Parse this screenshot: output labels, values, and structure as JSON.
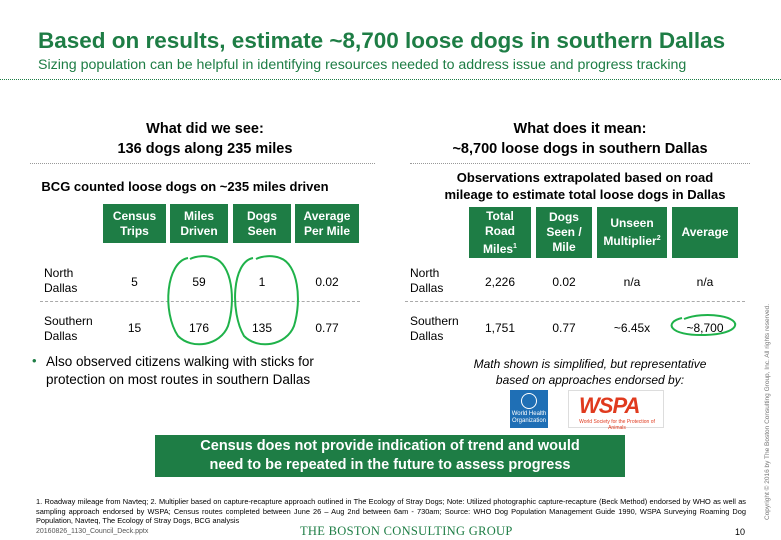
{
  "header": {
    "title": "Based on results, estimate ~8,700 loose dogs in southern Dallas",
    "subtitle": "Sizing population can be helpful in identifying resources needed to address issue and progress tracking"
  },
  "left": {
    "heading_line1": "What did we see:",
    "heading_line2": "136 dogs along 235 miles",
    "subheading": "BCG counted loose dogs on ~235 miles driven",
    "columns": [
      "Census\nTrips",
      "Miles\nDriven",
      "Dogs\nSeen",
      "Average\nPer Mile"
    ],
    "col_census": "Census Trips",
    "col_miles": "Miles Driven",
    "col_dogs": "Dogs Seen",
    "col_avg": "Average Per Mile",
    "rows": [
      {
        "label_line1": "North",
        "label_line2": "Dallas",
        "trips": "5",
        "miles": "59",
        "dogs": "1",
        "avg": "0.02"
      },
      {
        "label_line1": "Southern",
        "label_line2": "Dallas",
        "trips": "15",
        "miles": "176",
        "dogs": "135",
        "avg": "0.77"
      }
    ],
    "bullet_line1": "Also observed citizens walking with sticks for",
    "bullet_line2": "protection on most routes in southern Dallas"
  },
  "right": {
    "heading_line1": "What does it mean:",
    "heading_line2": "~8,700 loose dogs in southern Dallas",
    "subheading_line1": "Observations extrapolated based on road",
    "subheading_line2": "mileage to estimate total loose dogs in Dallas",
    "col_road_l1": "Total",
    "col_road_l2": "Road",
    "col_road_l3": "Miles",
    "col_road_sup": "1",
    "col_seen_l1": "Dogs",
    "col_seen_l2": "Seen /",
    "col_seen_l3": "Mile",
    "col_unseen_l1": "Unseen",
    "col_unseen_l2": "Multiplier",
    "col_unseen_sup": "2",
    "col_avg": "Average",
    "rows": [
      {
        "label_line1": "North",
        "label_line2": "Dallas",
        "road": "2,226",
        "seen": "0.02",
        "unseen": "n/a",
        "avg": "n/a"
      },
      {
        "label_line1": "Southern",
        "label_line2": "Dallas",
        "road": "1,751",
        "seen": "0.77",
        "unseen": "~6.45x",
        "avg": "~8,700"
      }
    ],
    "math_line1": "Math shown is simplified, but representative",
    "math_line2": "based on approaches endorsed by:",
    "who_text_line1": "World Health",
    "who_text_line2": "Organization",
    "wspa_text": "WSPA",
    "wspa_sub": "World Society for the Protection of Animals"
  },
  "callout": {
    "line1": "Census does not provide indication of trend and would",
    "line2": "need to be repeated in the future to assess progress"
  },
  "footer": {
    "footnote": "1. Roadway mileage from Navteq; 2. Multiplier based on capture-recapture approach outlined in The Ecology of Stray Dogs; Note: Utilized photographic capture-recapture (Beck Method) endorsed by WHO as well as sampling approach endorsed by WSPA; Census routes completed between June 26 – Aug 2nd between 6am - 730am; Source: WHO Dog Population Management Guide 1990, WSPA Surveying Roaming Dog Population, Navteq, The Ecology of Stray Dogs, BCG analysis",
    "file_name": "20160826_1130_Council_Deck.pptx",
    "logo": "THE BOSTON CONSULTING GROUP",
    "page_number": "10",
    "copyright": "Copyright © 2016 by The Boston Consulting Group, Inc. All rights reserved."
  },
  "colors": {
    "accent": "#1e7d45"
  }
}
